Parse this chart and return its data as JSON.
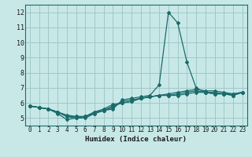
{
  "xlabel": "Humidex (Indice chaleur)",
  "background_color": "#c8e8e8",
  "grid_color": "#a0c8c8",
  "line_color": "#1a6b6b",
  "border_color": "#1a6b6b",
  "xlim": [
    -0.5,
    23.5
  ],
  "ylim": [
    4.5,
    12.5
  ],
  "xticks": [
    0,
    1,
    2,
    3,
    4,
    5,
    6,
    7,
    8,
    9,
    10,
    11,
    12,
    13,
    14,
    15,
    16,
    17,
    18,
    19,
    20,
    21,
    22,
    23
  ],
  "yticks": [
    5,
    6,
    7,
    8,
    9,
    10,
    11,
    12
  ],
  "series": [
    [
      5.8,
      5.7,
      5.6,
      5.3,
      4.9,
      5.0,
      5.0,
      5.3,
      5.5,
      5.6,
      6.2,
      6.3,
      6.4,
      6.5,
      7.2,
      12.0,
      11.3,
      8.7,
      7.0,
      6.7,
      6.6,
      6.6,
      6.5,
      6.7
    ],
    [
      5.8,
      5.7,
      5.6,
      5.4,
      5.1,
      5.0,
      5.1,
      5.3,
      5.5,
      5.7,
      6.1,
      6.2,
      6.3,
      6.4,
      6.5,
      6.6,
      6.7,
      6.8,
      6.9,
      6.8,
      6.8,
      6.7,
      6.6,
      6.7
    ],
    [
      5.8,
      5.7,
      5.6,
      5.4,
      5.1,
      5.1,
      5.1,
      5.4,
      5.5,
      5.8,
      6.0,
      6.1,
      6.3,
      6.4,
      6.5,
      6.5,
      6.6,
      6.7,
      6.8,
      6.7,
      6.7,
      6.6,
      6.6,
      6.7
    ],
    [
      5.8,
      5.7,
      5.6,
      5.4,
      5.2,
      5.1,
      5.1,
      5.4,
      5.6,
      5.9,
      6.0,
      6.1,
      6.3,
      6.4,
      6.5,
      6.5,
      6.5,
      6.6,
      6.7,
      6.7,
      6.6,
      6.6,
      6.5,
      6.7
    ]
  ]
}
